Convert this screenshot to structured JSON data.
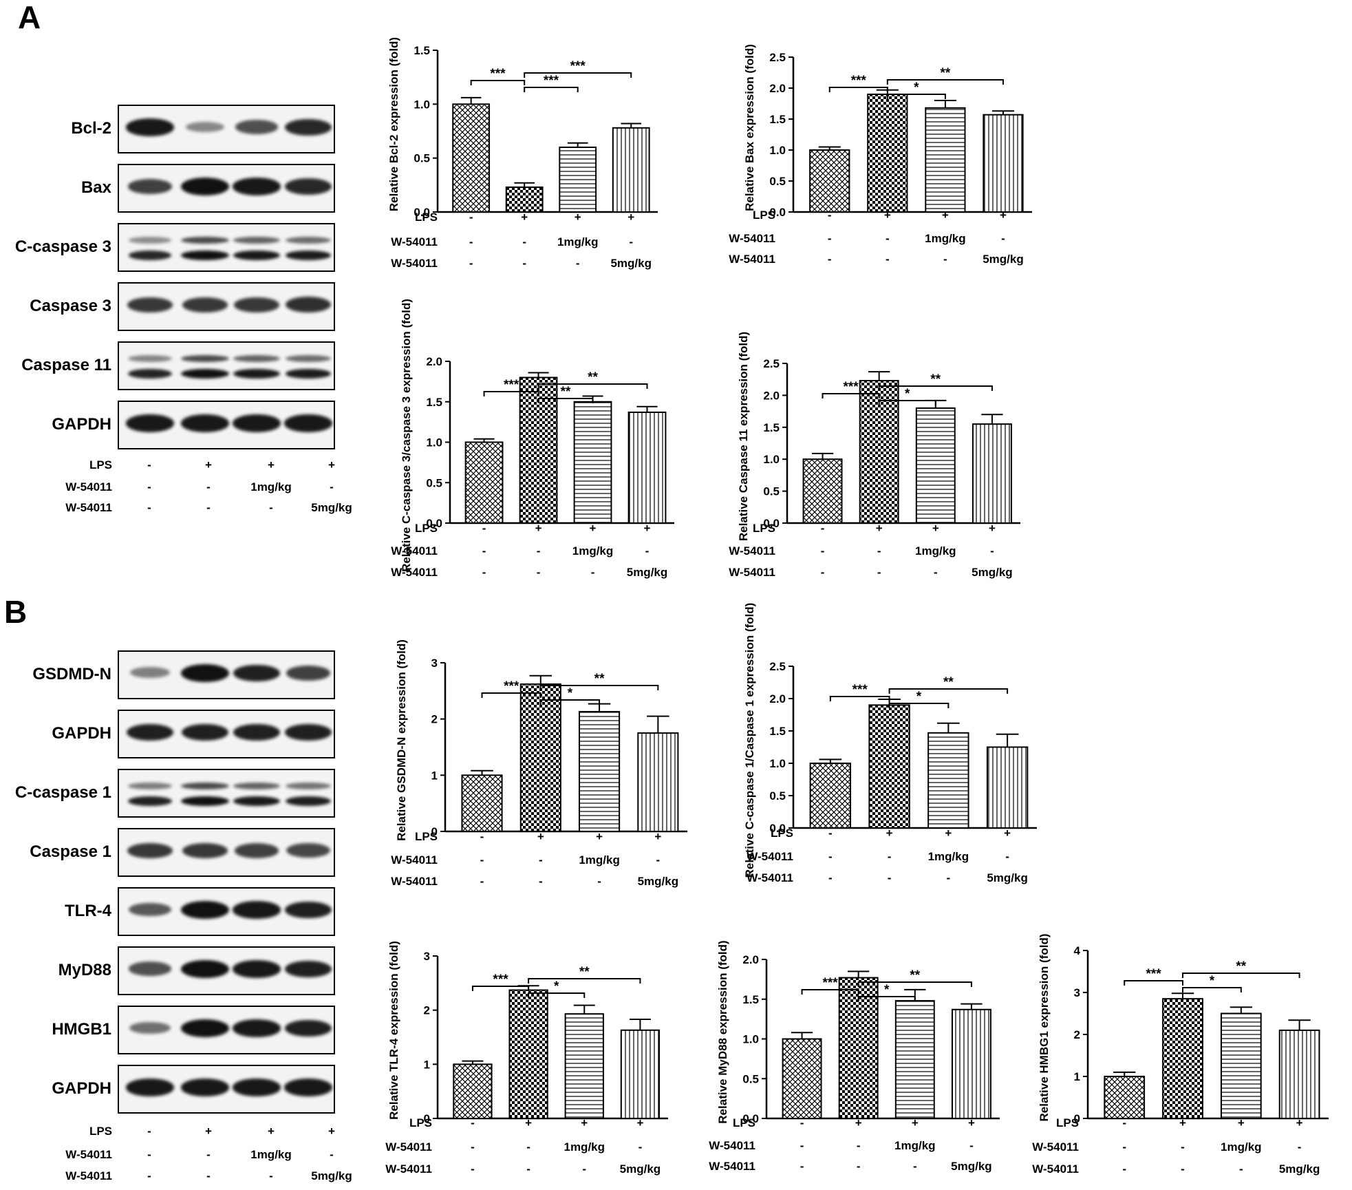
{
  "panels": {
    "a": "A",
    "b": "B"
  },
  "conditions": [
    {
      "name": "LPS",
      "values": [
        "-",
        "+",
        "+",
        "+"
      ]
    },
    {
      "name": "W-54011",
      "values": [
        "-",
        "-",
        "1mg/kg",
        "-"
      ]
    },
    {
      "name": "W-54011",
      "values": [
        "-",
        "-",
        "-",
        "5mg/kg"
      ]
    }
  ],
  "blots_a": [
    {
      "label": "Bcl-2",
      "intensities": [
        0.95,
        0.25,
        0.6,
        0.85
      ],
      "double": false
    },
    {
      "label": "Bax",
      "intensities": [
        0.7,
        1.0,
        0.95,
        0.85
      ],
      "double": false
    },
    {
      "label": "C-caspase 3",
      "intensities": [
        0.6,
        1.0,
        0.85,
        0.8
      ],
      "double": true
    },
    {
      "label": "Caspase 3",
      "intensities": [
        0.75,
        0.75,
        0.75,
        0.8
      ],
      "double": false
    },
    {
      "label": "Caspase 11",
      "intensities": [
        0.65,
        1.0,
        0.85,
        0.8
      ],
      "double": true
    },
    {
      "label": "GAPDH",
      "intensities": [
        0.95,
        0.95,
        0.95,
        0.95
      ],
      "double": false
    }
  ],
  "blots_b": [
    {
      "label": "GSDMD-N",
      "intensities": [
        0.3,
        1.0,
        0.9,
        0.7
      ],
      "double": false
    },
    {
      "label": "GAPDH",
      "intensities": [
        0.9,
        0.9,
        0.9,
        0.9
      ],
      "double": false
    },
    {
      "label": "C-caspase 1",
      "intensities": [
        0.7,
        1.0,
        0.85,
        0.75
      ],
      "double": true
    },
    {
      "label": "Caspase 1",
      "intensities": [
        0.75,
        0.75,
        0.7,
        0.65
      ],
      "double": false
    },
    {
      "label": "TLR-4",
      "intensities": [
        0.55,
        1.0,
        0.95,
        0.9
      ],
      "double": false
    },
    {
      "label": "MyD88",
      "intensities": [
        0.6,
        1.0,
        0.95,
        0.9
      ],
      "double": false
    },
    {
      "label": "HMGB1",
      "intensities": [
        0.4,
        1.0,
        0.95,
        0.9
      ],
      "double": false
    },
    {
      "label": "GAPDH",
      "intensities": [
        0.95,
        0.95,
        0.95,
        0.95
      ],
      "double": false
    }
  ],
  "chart_data": [
    {
      "type": "bar",
      "ylabel": "Relative Bcl-2 expression (fold)",
      "ylim": [
        0,
        1.5
      ],
      "yticks": [
        "0.0",
        "0.5",
        "1.0",
        "1.5"
      ],
      "values": [
        1.0,
        0.23,
        0.6,
        0.78
      ],
      "errors": [
        0.06,
        0.04,
        0.04,
        0.04
      ],
      "sig": [
        {
          "from": 0,
          "to": 1,
          "label": "***"
        },
        {
          "from": 1,
          "to": 2,
          "label": "***"
        },
        {
          "from": 1,
          "to": 3,
          "label": "***"
        }
      ]
    },
    {
      "type": "bar",
      "ylabel": "Relative Bax expression (fold)",
      "ylim": [
        0,
        2.5
      ],
      "yticks": [
        "0.0",
        "0.5",
        "1.0",
        "1.5",
        "2.0",
        "2.5"
      ],
      "values": [
        1.0,
        1.9,
        1.68,
        1.57
      ],
      "errors": [
        0.05,
        0.07,
        0.12,
        0.06
      ],
      "sig": [
        {
          "from": 0,
          "to": 1,
          "label": "***"
        },
        {
          "from": 1,
          "to": 2,
          "label": "*"
        },
        {
          "from": 1,
          "to": 3,
          "label": "**"
        }
      ]
    },
    {
      "type": "bar",
      "ylabel": "Relative C-caspase 3/caspase 3 expression (fold)",
      "ylim": [
        0,
        2.0
      ],
      "yticks": [
        "0.0",
        "0.5",
        "1.0",
        "1.5",
        "2.0"
      ],
      "values": [
        1.0,
        1.8,
        1.5,
        1.37
      ],
      "errors": [
        0.04,
        0.06,
        0.07,
        0.07
      ],
      "sig": [
        {
          "from": 0,
          "to": 1,
          "label": "***"
        },
        {
          "from": 1,
          "to": 2,
          "label": "**"
        },
        {
          "from": 1,
          "to": 3,
          "label": "**"
        }
      ]
    },
    {
      "type": "bar",
      "ylabel": "Relative Caspase 11 expression (fold)",
      "ylim": [
        0,
        2.5
      ],
      "yticks": [
        "0.0",
        "0.5",
        "1.0",
        "1.5",
        "2.0",
        "2.5"
      ],
      "values": [
        1.0,
        2.23,
        1.8,
        1.55
      ],
      "errors": [
        0.09,
        0.14,
        0.12,
        0.15
      ],
      "sig": [
        {
          "from": 0,
          "to": 1,
          "label": "***"
        },
        {
          "from": 1,
          "to": 2,
          "label": "*"
        },
        {
          "from": 1,
          "to": 3,
          "label": "**"
        }
      ]
    },
    {
      "type": "bar",
      "ylabel": "Relative GSDMD-N expression (fold)",
      "ylim": [
        0,
        3
      ],
      "yticks": [
        "0",
        "1",
        "2",
        "3"
      ],
      "values": [
        1.0,
        2.62,
        2.13,
        1.75
      ],
      "errors": [
        0.08,
        0.15,
        0.14,
        0.3
      ],
      "sig": [
        {
          "from": 0,
          "to": 1,
          "label": "***"
        },
        {
          "from": 1,
          "to": 2,
          "label": "*"
        },
        {
          "from": 1,
          "to": 3,
          "label": "**"
        }
      ]
    },
    {
      "type": "bar",
      "ylabel": "Relative C-caspase 1/Caspase 1 expression (fold)",
      "ylim": [
        0,
        2.5
      ],
      "yticks": [
        "0.0",
        "0.5",
        "1.0",
        "1.5",
        "2.0",
        "2.5"
      ],
      "values": [
        1.0,
        1.9,
        1.47,
        1.25
      ],
      "errors": [
        0.06,
        0.09,
        0.15,
        0.2
      ],
      "sig": [
        {
          "from": 0,
          "to": 1,
          "label": "***"
        },
        {
          "from": 1,
          "to": 2,
          "label": "*"
        },
        {
          "from": 1,
          "to": 3,
          "label": "**"
        }
      ]
    },
    {
      "type": "bar",
      "ylabel": "Relative TLR-4 expression (fold)",
      "ylim": [
        0,
        3
      ],
      "yticks": [
        "0",
        "1",
        "2",
        "3"
      ],
      "values": [
        1.0,
        2.37,
        1.93,
        1.63
      ],
      "errors": [
        0.06,
        0.08,
        0.16,
        0.2
      ],
      "sig": [
        {
          "from": 0,
          "to": 1,
          "label": "***"
        },
        {
          "from": 1,
          "to": 2,
          "label": "*"
        },
        {
          "from": 1,
          "to": 3,
          "label": "**"
        }
      ]
    },
    {
      "type": "bar",
      "ylabel": "Relative MyD88 expression (fold)",
      "ylim": [
        0,
        2.0
      ],
      "yticks": [
        "0.0",
        "0.5",
        "1.0",
        "1.5",
        "2.0"
      ],
      "values": [
        1.0,
        1.77,
        1.48,
        1.37
      ],
      "errors": [
        0.08,
        0.08,
        0.14,
        0.07
      ],
      "sig": [
        {
          "from": 0,
          "to": 1,
          "label": "***"
        },
        {
          "from": 1,
          "to": 2,
          "label": "*"
        },
        {
          "from": 1,
          "to": 3,
          "label": "**"
        }
      ]
    },
    {
      "type": "bar",
      "ylabel": "Relative HMBG1 expression (fold)",
      "ylim": [
        0,
        4
      ],
      "yticks": [
        "0",
        "1",
        "2",
        "3",
        "4"
      ],
      "values": [
        1.0,
        2.85,
        2.5,
        2.1
      ],
      "errors": [
        0.1,
        0.13,
        0.15,
        0.24
      ],
      "sig": [
        {
          "from": 0,
          "to": 1,
          "label": "***"
        },
        {
          "from": 1,
          "to": 2,
          "label": "*"
        },
        {
          "from": 1,
          "to": 3,
          "label": "**"
        }
      ]
    }
  ]
}
